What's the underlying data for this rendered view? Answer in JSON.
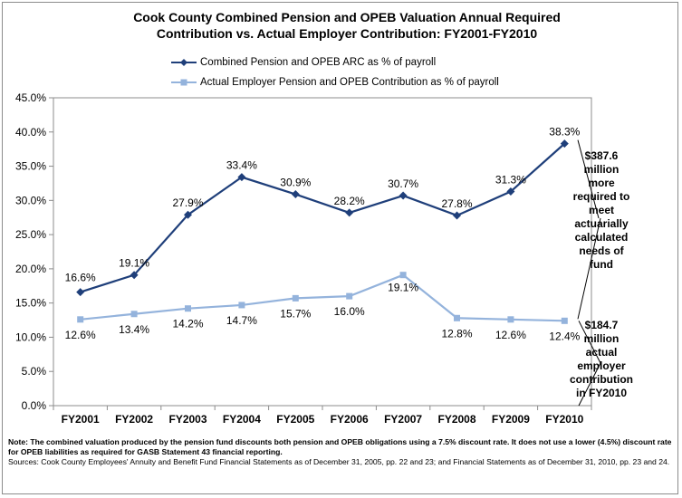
{
  "chart_data": {
    "type": "line",
    "title_line1": "Cook County Combined Pension and OPEB Valuation Annual Required",
    "title_line2": "Contribution vs. Actual Employer Contribution: FY2001-FY2010",
    "categories": [
      "FY2001",
      "FY2002",
      "FY2003",
      "FY2004",
      "FY2005",
      "FY2006",
      "FY2007",
      "FY2008",
      "FY2009",
      "FY2010"
    ],
    "ylim": [
      0,
      45
    ],
    "y_ticks": [
      "0.0%",
      "5.0%",
      "10.0%",
      "15.0%",
      "20.0%",
      "25.0%",
      "30.0%",
      "35.0%",
      "40.0%",
      "45.0%"
    ],
    "grid": false,
    "legend_position": "top",
    "series": [
      {
        "name": "Combined Pension and OPEB ARC as % of payroll",
        "color": "#1f3f7a",
        "marker": "diamond",
        "values": [
          16.6,
          19.1,
          27.9,
          33.4,
          30.9,
          28.2,
          30.7,
          27.8,
          31.3,
          38.3
        ],
        "labels": [
          "16.6%",
          "19.1%",
          "27.9%",
          "33.4%",
          "30.9%",
          "28.2%",
          "30.7%",
          "27.8%",
          "31.3%",
          "38.3%"
        ]
      },
      {
        "name": "Actual Employer Pension and OPEB Contribution as % of payroll",
        "color": "#94b3dc",
        "marker": "square",
        "values": [
          12.6,
          13.4,
          14.2,
          14.7,
          15.7,
          16.0,
          19.1,
          12.8,
          12.6,
          12.4
        ],
        "labels": [
          "12.6%",
          "13.4%",
          "14.2%",
          "14.7%",
          "15.7%",
          "16.0%",
          "19.1%",
          "12.8%",
          "12.6%",
          "12.4%"
        ]
      }
    ],
    "annotations": {
      "upper_callout": [
        "$387.6",
        "million",
        "more",
        "required to",
        "meet",
        "actuarially",
        "calculated",
        "needs of",
        "fund"
      ],
      "lower_callout": [
        "$184.7",
        "million",
        "actual",
        "employer",
        "contribution",
        "in FY2010"
      ]
    }
  },
  "footnote": {
    "note_label": "Note:",
    "note_text": " The combined valuation produced by the pension fund discounts both pension and OPEB obligations using a 7.5% discount rate. It does not use a lower (4.5%) discount rate for OPEB liabilities as required for GASB Statement 43 financial reporting.",
    "sources": "Sources: Cook County Employees' Annuity and Benefit Fund Financial Statements as of December 31, 2005, pp. 22 and 23; and Financial Statements as of December 31, 2010, pp. 23 and 24."
  }
}
